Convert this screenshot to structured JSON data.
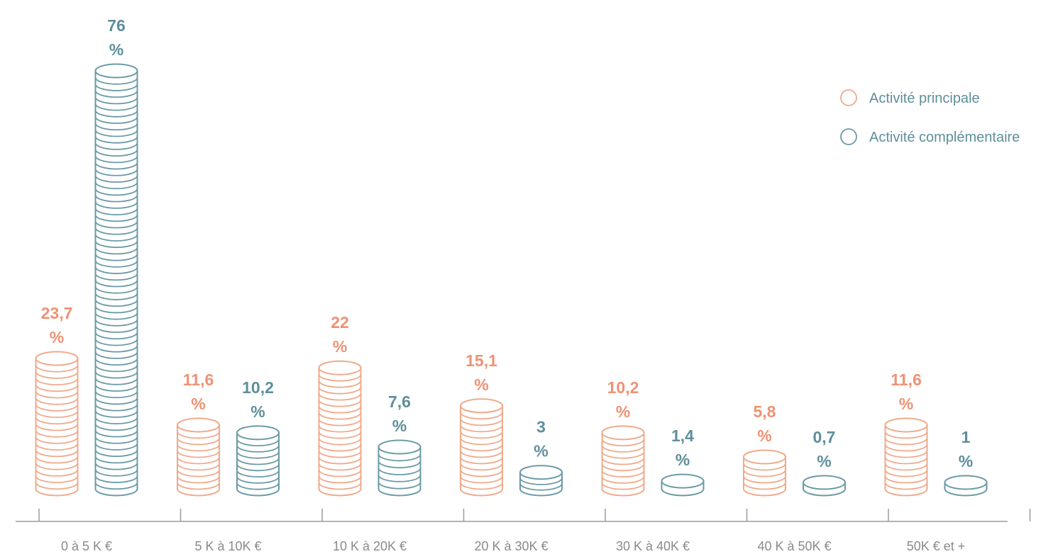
{
  "chart_data": {
    "type": "bar",
    "categories": [
      "0 à 5 K €",
      "5 K à 10K €",
      "10 K à 20K €",
      "20 K à 30K €",
      "30 K à 40K €",
      "40 K à 50K €",
      "50K € et +"
    ],
    "series": [
      {
        "name": "Activité principale",
        "color": "#f0a98a",
        "values": [
          23.7,
          11.6,
          22,
          15.1,
          10.2,
          5.8,
          11.6
        ],
        "labels": [
          "23,7",
          "11,6",
          "22",
          "15,1",
          "10,2",
          "5,8",
          "11,6"
        ]
      },
      {
        "name": "Activité complémentaire",
        "color": "#6a9aa6",
        "values": [
          76,
          10.2,
          7.6,
          3,
          1.4,
          0.7,
          1
        ],
        "labels": [
          "76",
          "10,2",
          "7,6",
          "3",
          "1,4",
          "0,7",
          "1"
        ]
      }
    ],
    "unit": "%",
    "legend_position": "top-right",
    "grid": false,
    "ylim": [
      0,
      76
    ]
  },
  "colors": {
    "principale_label": "#ee9274",
    "complementaire_label": "#5e8f9b",
    "axis": "#9a9a9a",
    "tick_text": "#8a8a8a",
    "legend_text": "#5e8f9b"
  },
  "icons": {
    "mark": "coin-stack",
    "legend": "circle-outline"
  }
}
